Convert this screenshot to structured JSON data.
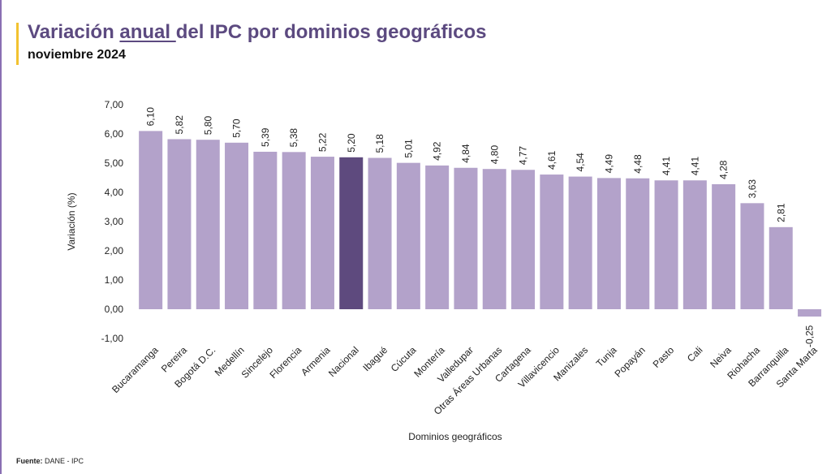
{
  "header": {
    "title_part1": "Variación ",
    "title_underlined": "anual ",
    "title_part2": "del IPC por dominios geográficos",
    "subtitle": "noviembre 2024"
  },
  "footer": {
    "source_label": "Fuente:",
    "source_value": " DANE - IPC"
  },
  "colors": {
    "bar": "#b3a2ca",
    "highlight": "#5e4a7e",
    "title": "#5c4a80",
    "accent": "#f2c230"
  },
  "chart_data": {
    "type": "bar",
    "xlabel": "Dominios geográficos",
    "ylabel": "Variación (%)",
    "ylim": [
      -1,
      7
    ],
    "yticks": [
      "-1,00",
      "0,00",
      "1,00",
      "2,00",
      "3,00",
      "4,00",
      "5,00",
      "6,00",
      "7,00"
    ],
    "grid": false,
    "highlight_category": "Nacional",
    "categories": [
      "Bucaramanga",
      "Pereira",
      "Bogotá D.C.",
      "Medellín",
      "Sincelejo",
      "Florencia",
      "Armenia",
      "Nacional",
      "Ibagué",
      "Cúcuta",
      "Montería",
      "Valledupar",
      "Otras Áreas Urbanas",
      "Cartagena",
      "Villavicencio",
      "Manizales",
      "Tunja",
      "Popayán",
      "Pasto",
      "Cali",
      "Neiva",
      "Riohacha",
      "Barranquilla",
      "Santa Marta"
    ],
    "values": [
      6.1,
      5.82,
      5.8,
      5.7,
      5.39,
      5.38,
      5.22,
      5.2,
      5.18,
      5.01,
      4.92,
      4.84,
      4.8,
      4.77,
      4.61,
      4.54,
      4.49,
      4.48,
      4.41,
      4.41,
      4.28,
      3.63,
      2.81,
      -0.25
    ],
    "value_labels": [
      "6,10",
      "5,82",
      "5,80",
      "5,70",
      "5,39",
      "5,38",
      "5,22",
      "5,20",
      "5,18",
      "5,01",
      "4,92",
      "4,84",
      "4,80",
      "4,77",
      "4,61",
      "4,54",
      "4,49",
      "4,48",
      "4,41",
      "4,41",
      "4,28",
      "3,63",
      "2,81",
      "-0,25"
    ]
  }
}
